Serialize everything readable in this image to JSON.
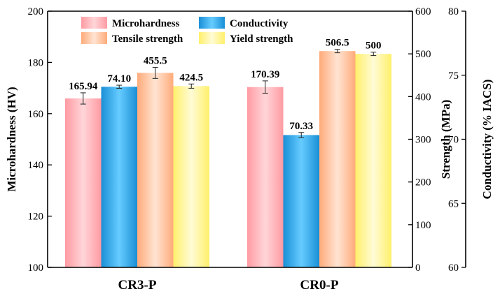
{
  "chart_data": {
    "type": "bar",
    "categories": [
      "CR3-P",
      "CR0-P"
    ],
    "series": [
      {
        "name": "Microhardness",
        "axis": "microhardness",
        "color_top": "#ff9aa2",
        "color_mid": "#ffd6d9",
        "values": [
          165.94,
          170.39
        ],
        "errors": [
          2.2,
          2.4
        ],
        "labels": [
          "165.94",
          "170.39"
        ]
      },
      {
        "name": "Conductivity",
        "axis": "conductivity",
        "color_top": "#1a8fd6",
        "color_mid": "#66ccff",
        "values": [
          74.1,
          70.33
        ],
        "errors": [
          0.12,
          0.2
        ],
        "labels": [
          "74.10",
          "70.33"
        ]
      },
      {
        "name": "Tensile strength",
        "axis": "strength",
        "color_top": "#ffab7a",
        "color_mid": "#ffe4d3",
        "values": [
          455.5,
          506.5
        ],
        "errors": [
          13,
          4
        ],
        "labels": [
          "455.5",
          "506.5"
        ]
      },
      {
        "name": "Yield strength",
        "axis": "strength",
        "color_top": "#fff06a",
        "color_mid": "#fffbd6",
        "values": [
          424.5,
          500
        ],
        "errors": [
          5,
          4
        ],
        "labels": [
          "424.5",
          "500"
        ]
      }
    ],
    "axes": {
      "microhardness": {
        "title": "Microhardness (HV)",
        "range": [
          100,
          200
        ],
        "ticks": [
          100,
          120,
          140,
          160,
          180,
          200
        ],
        "tick_labels": [
          "100",
          "120",
          "140",
          "160",
          "180",
          "200"
        ]
      },
      "strength": {
        "title": "Strength (MPa)",
        "range": [
          0,
          600
        ],
        "ticks": [
          0,
          100,
          200,
          300,
          400,
          500,
          600
        ],
        "tick_labels": [
          "0",
          "100",
          "200",
          "300",
          "400",
          "500",
          "600"
        ]
      },
      "conductivity": {
        "title": "Conductivity (% IACS)",
        "range": [
          60,
          80
        ],
        "ticks": [
          60,
          65,
          70,
          75,
          80
        ],
        "tick_labels": [
          "60",
          "65",
          "70",
          "75",
          "80"
        ]
      }
    },
    "legend": {
      "placement": "top-center",
      "columns": 2
    },
    "grid": false
  }
}
